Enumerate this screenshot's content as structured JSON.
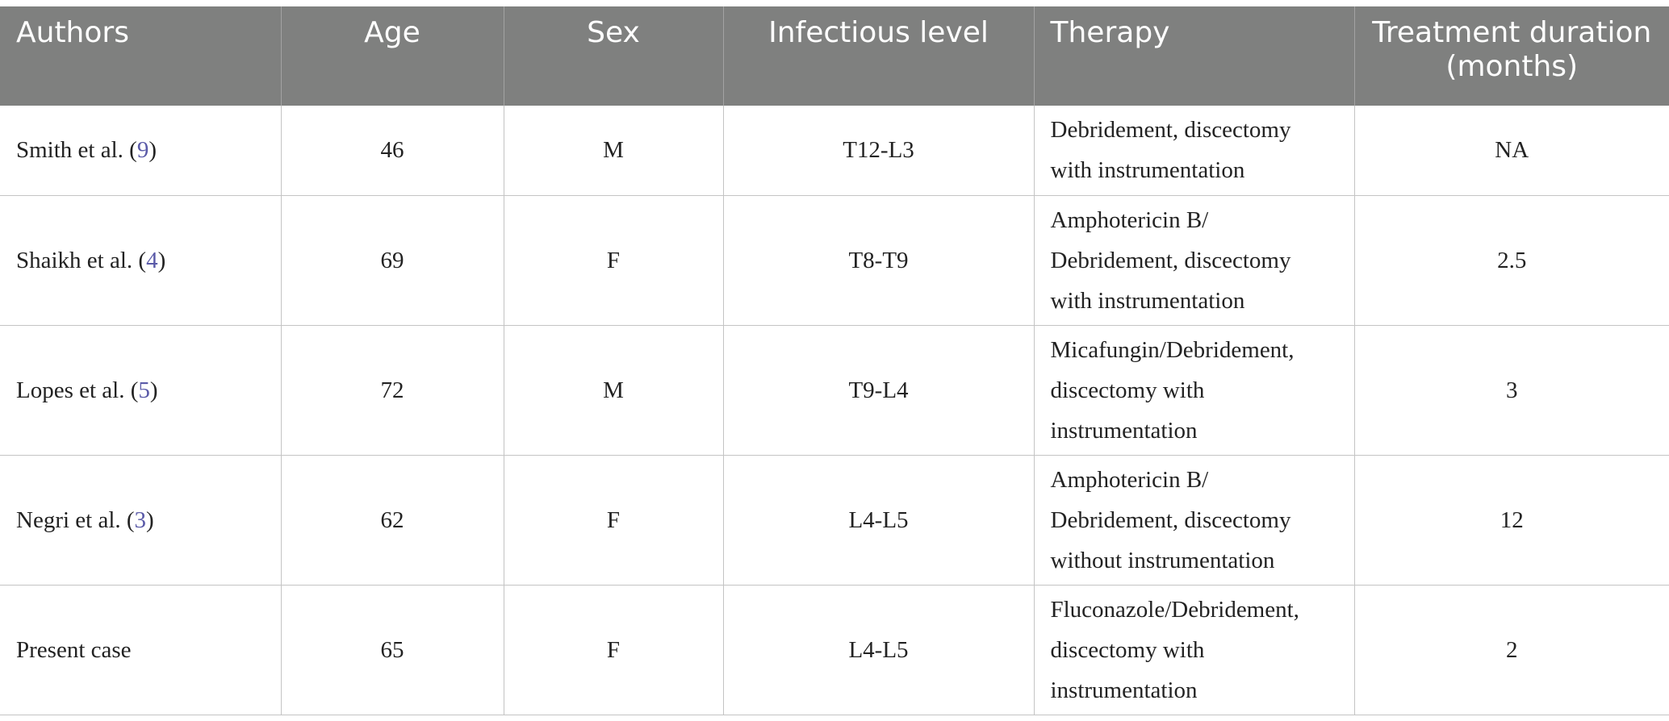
{
  "table": {
    "headers": [
      "Authors",
      "Age",
      "Sex",
      "Infectious level",
      "Therapy",
      "Treatment duration\n(months)"
    ],
    "header_lines": {
      "h5": [
        "Treatment duration",
        "(months)"
      ]
    },
    "rows": [
      {
        "author": "Smith et al. (",
        "ref": "9",
        "author_end": ")",
        "age": "46",
        "sex": "M",
        "level": "T12-L3",
        "therapy": [
          "Debridement, discectomy",
          "with instrumentation"
        ],
        "duration": "NA"
      },
      {
        "author": "Shaikh et al. (",
        "ref": "4",
        "author_end": ")",
        "age": "69",
        "sex": "F",
        "level": "T8-T9",
        "therapy": [
          "Amphotericin B/",
          "Debridement, discectomy",
          "with instrumentation"
        ],
        "duration": "2.5"
      },
      {
        "author": "Lopes et al. (",
        "ref": "5",
        "author_end": ")",
        "age": "72",
        "sex": "M",
        "level": "T9-L4",
        "therapy": [
          "Micafungin/Debridement,",
          "discectomy with",
          "instrumentation"
        ],
        "duration": "3"
      },
      {
        "author": "Negri et al. (",
        "ref": "3",
        "author_end": ")",
        "age": "62",
        "sex": "F",
        "level": "L4-L5",
        "therapy": [
          "Amphotericin B/",
          "Debridement, discectomy",
          "without instrumentation"
        ],
        "duration": "12"
      },
      {
        "author": "Present case",
        "ref": "",
        "author_end": "",
        "age": "65",
        "sex": "F",
        "level": "L4-L5",
        "therapy": [
          "Fluconazole/Debridement,",
          "discectomy with",
          "instrumentation"
        ],
        "duration": "2"
      }
    ]
  },
  "colors": {
    "header_bg": "#7f807f",
    "header_text": "#ffffff",
    "reference_link": "#5a5aa8",
    "grid": "#c4c4c4"
  }
}
